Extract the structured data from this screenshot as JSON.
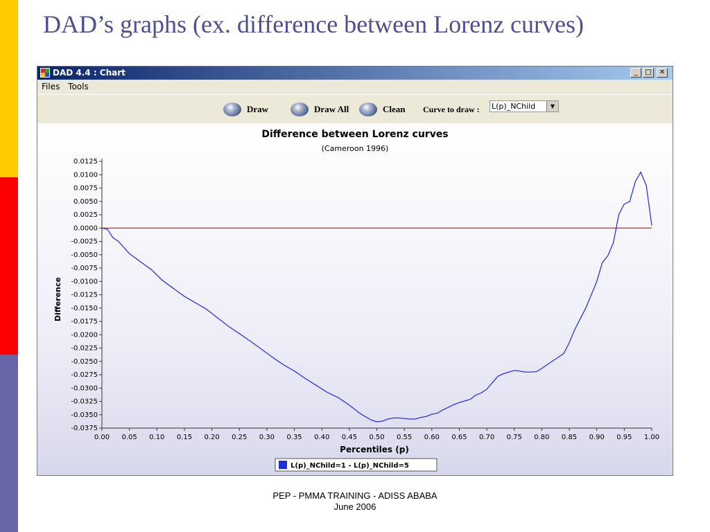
{
  "slide": {
    "title": "DAD’s graphs  (ex. difference between Lorenz curves)",
    "footer_line1": "PEP - PMMA TRAINING - ADISS ABABA",
    "footer_line2": "June 2006"
  },
  "window": {
    "title": "DAD 4.4 : Chart",
    "min_glyph": "_",
    "max_glyph": "□",
    "close_glyph": "✕"
  },
  "menu": {
    "files": "Files",
    "tools": "Tools"
  },
  "toolbar": {
    "draw": "Draw",
    "draw_all": "Draw All",
    "clean": "Clean",
    "curve_label": "Curve to draw :",
    "curve_value": "L(p)_NChild",
    "dropdown_glyph": "▼"
  },
  "colors": {
    "curve": "#3333DD",
    "zero_line": "#DD2222",
    "title_text": "#4F4F8F"
  },
  "chart_data": {
    "type": "line",
    "title": "Difference between Lorenz curves",
    "subtitle": "(Cameroon 1996)",
    "xlabel": "Percentiles (p)",
    "ylabel": "Difference",
    "xlim": [
      0,
      1
    ],
    "ylim": [
      -0.0375,
      0.0125
    ],
    "xticks": [
      "0.00",
      "0.05",
      "0.10",
      "0.15",
      "0.20",
      "0.25",
      "0.30",
      "0.35",
      "0.40",
      "0.45",
      "0.50",
      "0.55",
      "0.60",
      "0.65",
      "0.70",
      "0.75",
      "0.80",
      "0.85",
      "0.90",
      "0.95",
      "1.00"
    ],
    "yticks": [
      "0.0125",
      "0.0100",
      "0.0075",
      "0.0050",
      "0.0025",
      "0.0000",
      "-0.0025",
      "-0.0050",
      "-0.0075",
      "-0.0100",
      "-0.0125",
      "-0.0150",
      "-0.0175",
      "-0.0200",
      "-0.0225",
      "-0.0250",
      "-0.0275",
      "-0.0300",
      "-0.0325",
      "-0.0350",
      "-0.0375"
    ],
    "legend_placement": "bottom-center",
    "series": [
      {
        "name": "L(p)_NChild=1 - L(p)_NChild=5",
        "x": [
          0,
          0.01,
          0.02,
          0.03,
          0.05,
          0.07,
          0.09,
          0.11,
          0.13,
          0.15,
          0.17,
          0.19,
          0.21,
          0.23,
          0.25,
          0.27,
          0.29,
          0.31,
          0.33,
          0.35,
          0.37,
          0.39,
          0.41,
          0.43,
          0.45,
          0.47,
          0.49,
          0.5,
          0.51,
          0.52,
          0.53,
          0.54,
          0.55,
          0.56,
          0.57,
          0.58,
          0.59,
          0.6,
          0.61,
          0.62,
          0.63,
          0.64,
          0.65,
          0.66,
          0.67,
          0.68,
          0.69,
          0.7,
          0.71,
          0.72,
          0.73,
          0.74,
          0.75,
          0.76,
          0.77,
          0.78,
          0.79,
          0.8,
          0.81,
          0.82,
          0.83,
          0.84,
          0.85,
          0.86,
          0.87,
          0.88,
          0.89,
          0.9,
          0.91,
          0.92,
          0.93,
          0.94,
          0.95,
          0.96,
          0.97,
          0.98,
          0.99,
          1.0
        ],
        "y": [
          0,
          -0.0002,
          -0.0018,
          -0.0025,
          -0.0048,
          -0.0063,
          -0.0078,
          -0.0098,
          -0.0113,
          -0.0128,
          -0.014,
          -0.0152,
          -0.0168,
          -0.0184,
          -0.0198,
          -0.0212,
          -0.0227,
          -0.0242,
          -0.0256,
          -0.0268,
          -0.0282,
          -0.0295,
          -0.0308,
          -0.0318,
          -0.0332,
          -0.0348,
          -0.036,
          -0.0363,
          -0.0362,
          -0.0358,
          -0.0356,
          -0.0356,
          -0.0357,
          -0.0358,
          -0.0358,
          -0.0355,
          -0.0353,
          -0.0349,
          -0.0347,
          -0.0341,
          -0.0336,
          -0.0331,
          -0.0327,
          -0.0324,
          -0.0321,
          -0.0313,
          -0.0309,
          -0.0302,
          -0.029,
          -0.0278,
          -0.0273,
          -0.027,
          -0.0267,
          -0.0268,
          -0.027,
          -0.027,
          -0.0269,
          -0.0263,
          -0.0256,
          -0.0249,
          -0.0242,
          -0.0235,
          -0.0215,
          -0.019,
          -0.017,
          -0.015,
          -0.0125,
          -0.01,
          -0.0065,
          -0.0052,
          -0.0028,
          0.0025,
          0.0045,
          0.005,
          0.0087,
          0.0105,
          0.008,
          0.0005
        ]
      }
    ],
    "reference_line_y": 0
  }
}
